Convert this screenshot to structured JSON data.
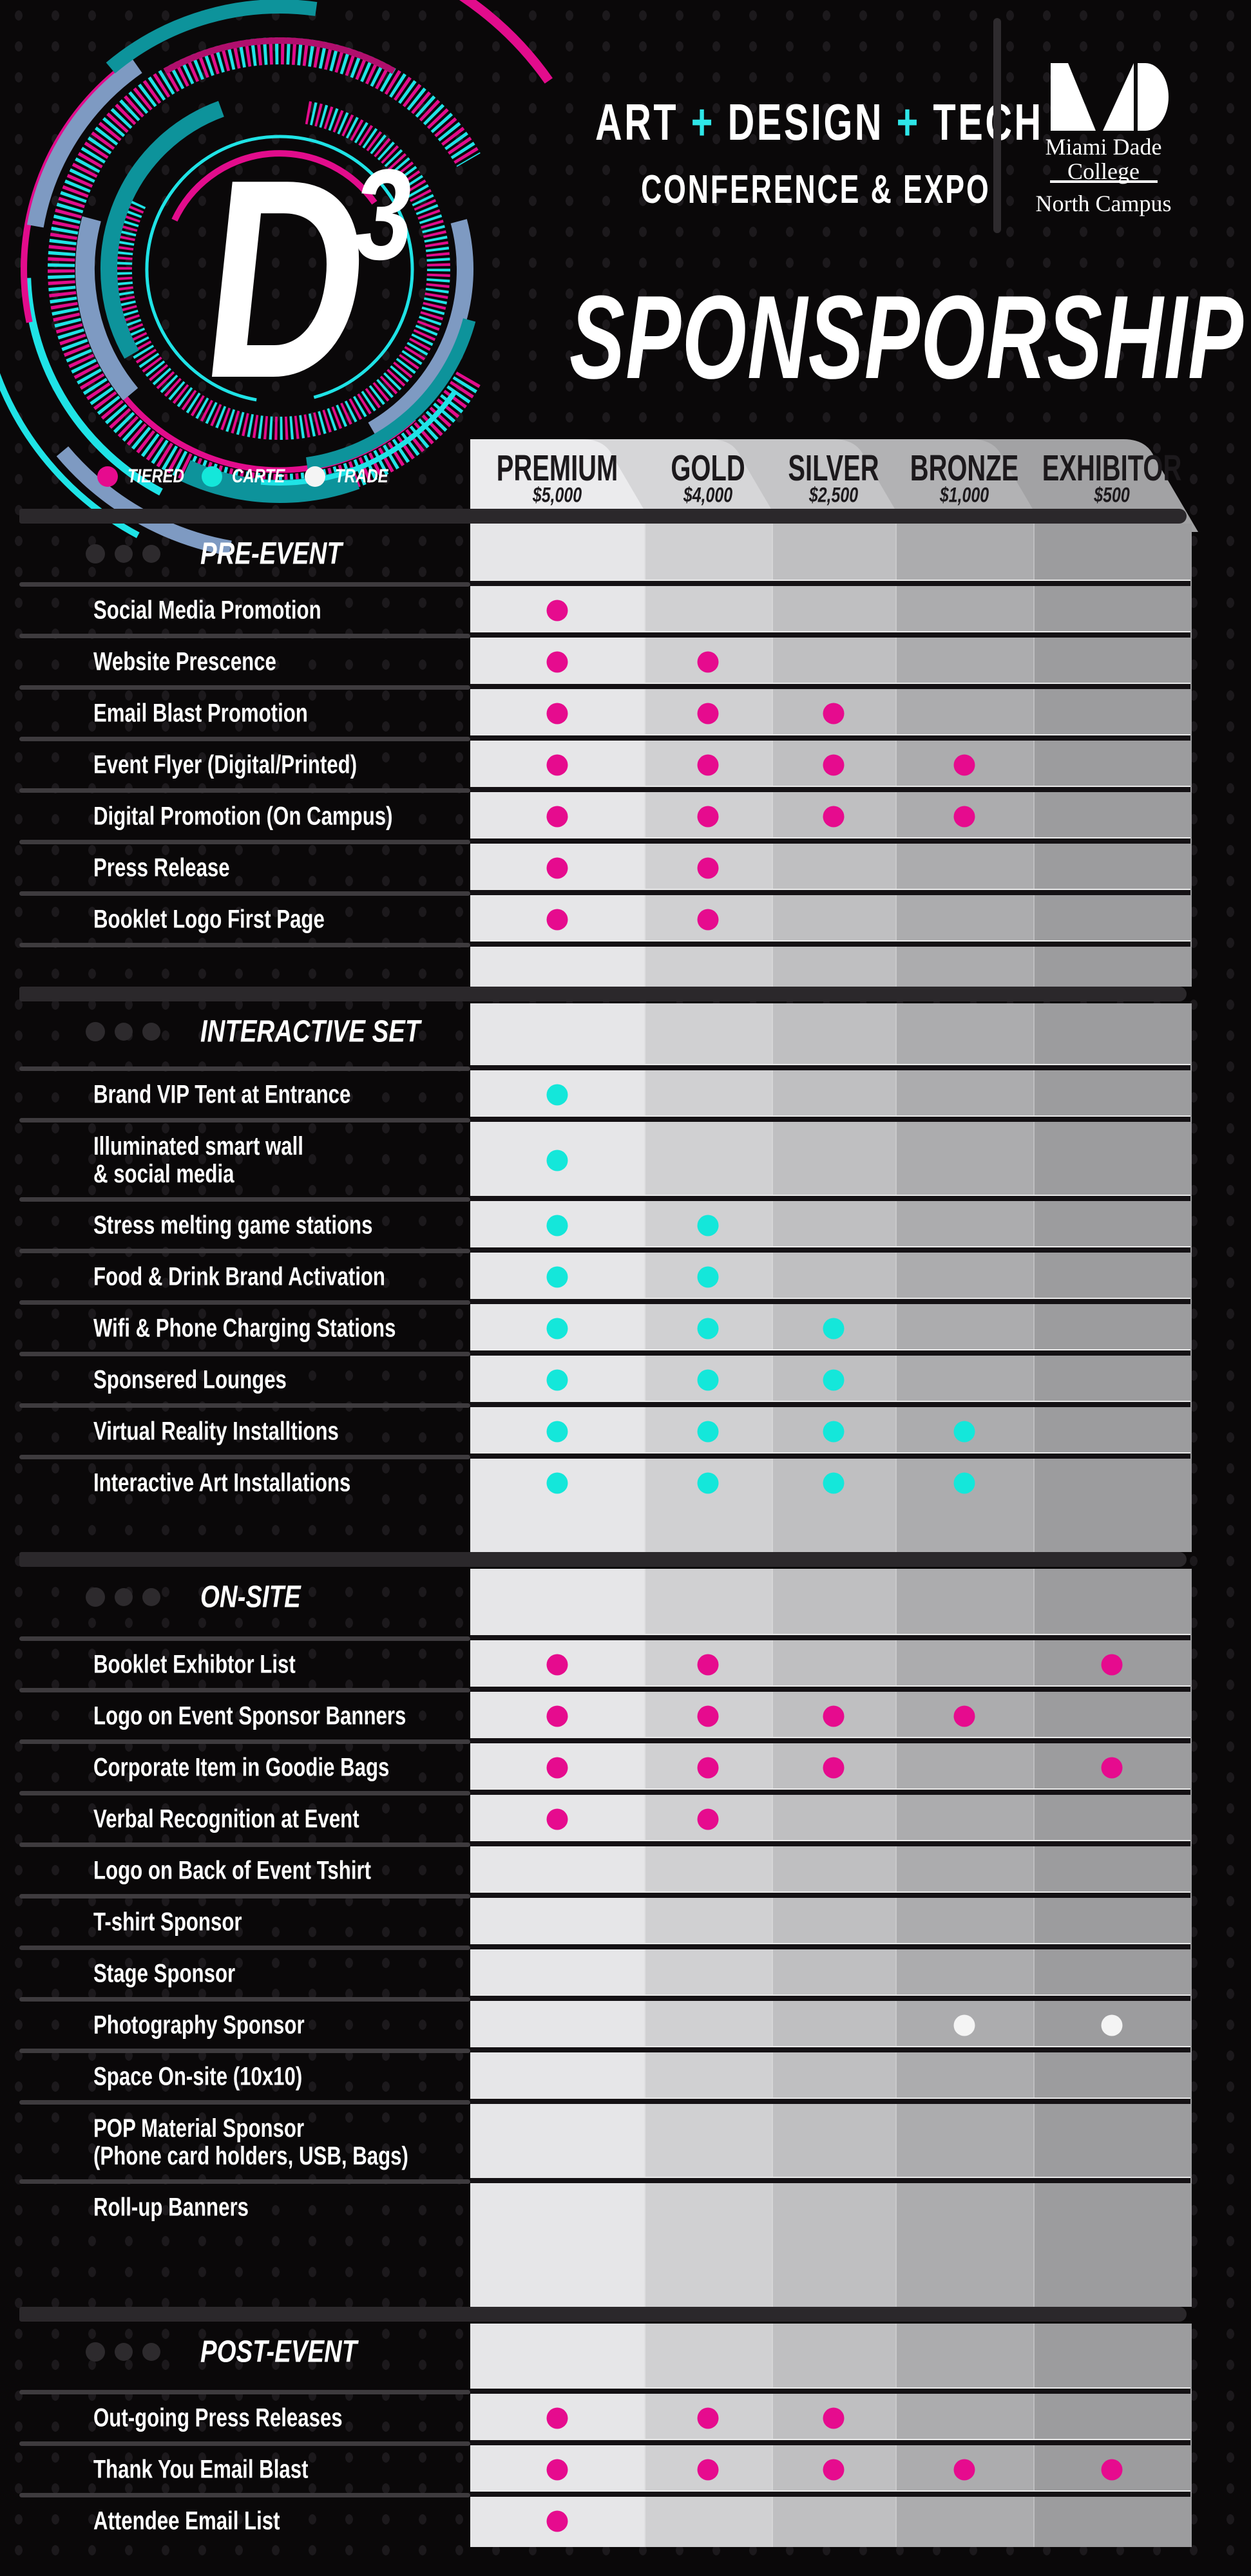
{
  "brand": {
    "logo_main": "D",
    "logo_sup": "3"
  },
  "event": {
    "title_words": [
      "ART",
      "DESIGN",
      "TECH"
    ],
    "plus": "+",
    "subtitle": "CONFERENCE & EXPO"
  },
  "college": {
    "line1": "Miami Dade",
    "line2": "College",
    "campus": "North Campus"
  },
  "page_title": "SPONSPORSHIP",
  "legend": [
    {
      "label": "TIERED",
      "key": "tiered",
      "color": "#e60b8e"
    },
    {
      "label": "CARTE",
      "key": "carte",
      "color": "#14e7da"
    },
    {
      "label": "TRADE",
      "key": "trade",
      "color": "#f4f4f4"
    }
  ],
  "chart_data": {
    "type": "table",
    "title": "SPONSPORSHIP",
    "subtitle": "ART + DESIGN + TECH CONFERENCE & EXPO",
    "columns": [
      {
        "name": "PREMIUM",
        "price": "$5,000"
      },
      {
        "name": "GOLD",
        "price": "$4,000"
      },
      {
        "name": "SILVER",
        "price": "$2,500"
      },
      {
        "name": "BRONZE",
        "price": "$1,000"
      },
      {
        "name": "EXHIBITOR",
        "price": "$500"
      }
    ],
    "sections": [
      {
        "title": "PRE-EVENT",
        "rows": [
          {
            "label": "Social Media Promotion",
            "category": "tiered",
            "included": [
              0
            ]
          },
          {
            "label": "Website Prescence",
            "category": "tiered",
            "included": [
              0,
              1
            ]
          },
          {
            "label": "Email Blast Promotion",
            "category": "tiered",
            "included": [
              0,
              1,
              2
            ]
          },
          {
            "label": "Event Flyer (Digital/Printed)",
            "category": "tiered",
            "included": [
              0,
              1,
              2,
              3
            ]
          },
          {
            "label": "Digital Promotion (On Campus)",
            "category": "tiered",
            "included": [
              0,
              1,
              2,
              3
            ]
          },
          {
            "label": "Press Release",
            "category": "tiered",
            "included": [
              0,
              1
            ]
          },
          {
            "label": "Booklet Logo First Page",
            "category": "tiered",
            "included": [
              0,
              1
            ]
          }
        ]
      },
      {
        "title": "INTERACTIVE SET",
        "rows": [
          {
            "label": "Brand VIP Tent at Entrance",
            "category": "carte",
            "included": [
              0
            ]
          },
          {
            "label": "Illuminated smart wall & social media",
            "lines": [
              "Illuminated smart wall",
              "& social media"
            ],
            "category": "carte",
            "included": [
              0
            ]
          },
          {
            "label": "Stress melting game stations",
            "category": "carte",
            "included": [
              0,
              1
            ]
          },
          {
            "label": "Food & Drink Brand Activation",
            "category": "carte",
            "included": [
              0,
              1
            ]
          },
          {
            "label": "Wifi & Phone Charging Stations",
            "category": "carte",
            "included": [
              0,
              1,
              2
            ]
          },
          {
            "label": "Sponsered Lounges",
            "category": "carte",
            "included": [
              0,
              1,
              2
            ]
          },
          {
            "label": "Virtual Reality Installtions",
            "category": "carte",
            "included": [
              0,
              1,
              2,
              3
            ]
          },
          {
            "label": "Interactive Art Installations",
            "category": "carte",
            "included": [
              0,
              1,
              2,
              3
            ]
          }
        ]
      },
      {
        "title": "ON-SITE",
        "rows": [
          {
            "label": "Booklet Exhibtor List",
            "category": "tiered",
            "included": [
              0,
              1,
              4
            ]
          },
          {
            "label": "Logo on Event Sponsor Banners",
            "category": "tiered",
            "included": [
              0,
              1,
              2,
              3
            ]
          },
          {
            "label": "Corporate Item in Goodie Bags",
            "category": "tiered",
            "included": [
              0,
              1,
              2,
              4
            ]
          },
          {
            "label": "Verbal Recognition at Event",
            "category": "tiered",
            "included": [
              0,
              1
            ]
          },
          {
            "label": "Logo on Back of Event Tshirt",
            "category": "tiered",
            "included": []
          },
          {
            "label": "T-shirt Sponsor",
            "category": "tiered",
            "included": []
          },
          {
            "label": "Stage Sponsor",
            "category": "tiered",
            "included": []
          },
          {
            "label": "Photography Sponsor",
            "category": "trade",
            "included": [
              3,
              4
            ]
          },
          {
            "label": "Space On-site (10x10)",
            "category": "tiered",
            "included": []
          },
          {
            "label": "POP Material Sponsor (Phone card holders, USB, Bags)",
            "lines": [
              "POP Material Sponsor",
              "(Phone card holders, USB, Bags)"
            ],
            "category": "tiered",
            "included": []
          },
          {
            "label": "Roll-up Banners",
            "category": "tiered",
            "included": []
          }
        ]
      },
      {
        "title": "POST-EVENT",
        "rows": [
          {
            "label": "Out-going Press Releases",
            "category": "tiered",
            "included": [
              0,
              1,
              2
            ]
          },
          {
            "label": "Thank You Email Blast",
            "category": "tiered",
            "included": [
              0,
              1,
              2,
              3,
              4
            ]
          },
          {
            "label": "Attendee Email List",
            "category": "tiered",
            "included": [
              0
            ]
          }
        ]
      }
    ]
  }
}
